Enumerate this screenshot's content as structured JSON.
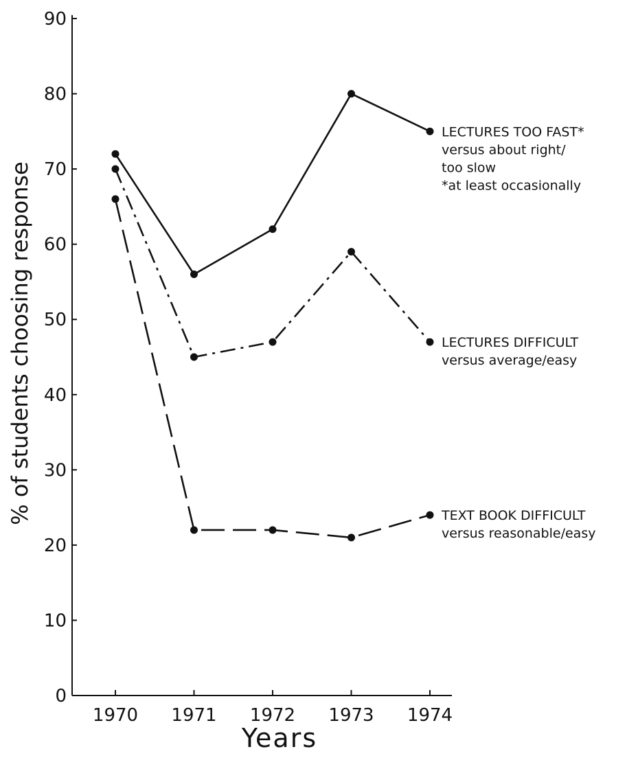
{
  "chart_data": {
    "type": "line",
    "xlabel": "Years",
    "ylabel": "% of students choosing response",
    "ylim": [
      0,
      90
    ],
    "yticks": [
      0,
      10,
      20,
      30,
      40,
      50,
      60,
      70,
      80,
      90
    ],
    "xticks": [
      1970,
      1971,
      1972,
      1973,
      1974
    ],
    "grid": false,
    "series": [
      {
        "name": "LECTURES TOO FAST*",
        "label_lines": [
          "LECTURES TOO FAST*",
          "versus about right/",
          "too slow",
          "*at least occasionally"
        ],
        "line_style": "solid",
        "x": [
          1970,
          1971,
          1972,
          1973,
          1974
        ],
        "y": [
          72,
          56,
          62,
          80,
          75
        ]
      },
      {
        "name": "LECTURES DIFFICULT",
        "label_lines": [
          "LECTURES DIFFICULT",
          "versus average/easy"
        ],
        "line_style": "dash-dot",
        "x": [
          1970,
          1971,
          1972,
          1973,
          1974
        ],
        "y": [
          70,
          45,
          47,
          59,
          47
        ]
      },
      {
        "name": "TEXT BOOK DIFFICULT",
        "label_lines": [
          "TEXT BOOK DIFFICULT",
          "versus reasonable/easy"
        ],
        "line_style": "long-dash",
        "x": [
          1970,
          1971,
          1972,
          1973,
          1974
        ],
        "y": [
          66,
          22,
          22,
          21,
          24
        ]
      }
    ]
  },
  "colors": {
    "ink": "#111111",
    "background": "#ffffff"
  }
}
